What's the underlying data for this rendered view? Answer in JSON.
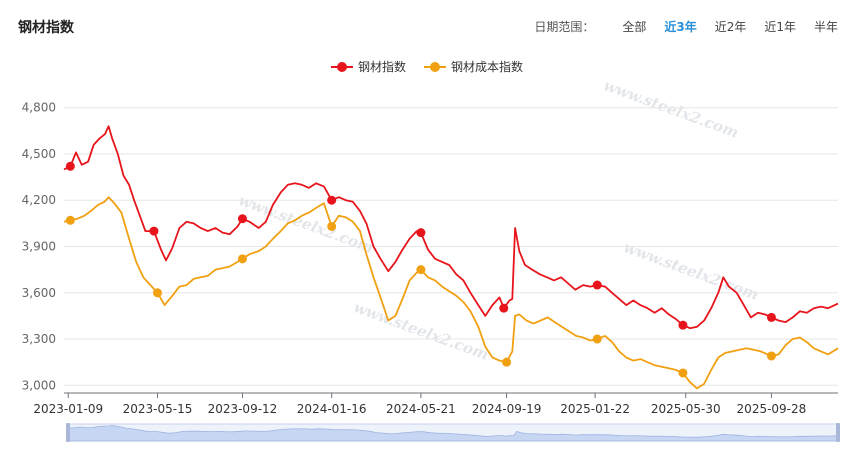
{
  "page": {
    "title": "钢材指数"
  },
  "range_selector": {
    "label": "日期范围：",
    "options": [
      {
        "label": "全部",
        "active": false
      },
      {
        "label": "近3年",
        "active": true
      },
      {
        "label": "近2年",
        "active": false
      },
      {
        "label": "近1年",
        "active": false
      },
      {
        "label": "半年",
        "active": false
      }
    ]
  },
  "watermark": "www.steelx2.com",
  "colors": {
    "steel_index": "#e8141b",
    "cost_index": "#f0a010",
    "grid": "#e6e6e6",
    "axis_text": "#666666"
  },
  "chart_data": {
    "type": "line",
    "title": "",
    "xlabel": "",
    "ylabel": "",
    "ylim": [
      2950,
      4850
    ],
    "yticks": [
      3000,
      3300,
      3600,
      3900,
      4200,
      4500,
      4800
    ],
    "ytick_labels": [
      "3,000",
      "3,300",
      "3,600",
      "3,900",
      "4,200",
      "4,500",
      "4,800"
    ],
    "x_range": [
      "2023-01-03",
      "2025-12-31"
    ],
    "xticks": [
      "2023-01-09",
      "2023-05-15",
      "2023-09-12",
      "2024-01-16",
      "2024-05-21",
      "2024-09-19",
      "2025-01-22",
      "2025-05-30",
      "2025-09-28"
    ],
    "grid": true,
    "legend_position": "top-center",
    "series": [
      {
        "name": "钢材指数",
        "color": "#e8141b",
        "points": [
          [
            "2023-01-03",
            4400
          ],
          [
            "2023-01-12",
            4420
          ],
          [
            "2023-01-20",
            4510
          ],
          [
            "2023-01-28",
            4430
          ],
          [
            "2023-02-06",
            4450
          ],
          [
            "2023-02-14",
            4560
          ],
          [
            "2023-02-22",
            4600
          ],
          [
            "2023-03-02",
            4630
          ],
          [
            "2023-03-07",
            4680
          ],
          [
            "2023-03-12",
            4600
          ],
          [
            "2023-03-20",
            4500
          ],
          [
            "2023-03-28",
            4360
          ],
          [
            "2023-04-05",
            4300
          ],
          [
            "2023-04-12",
            4200
          ],
          [
            "2023-04-20",
            4100
          ],
          [
            "2023-04-28",
            4000
          ],
          [
            "2023-05-10",
            4000
          ],
          [
            "2023-05-20",
            3880
          ],
          [
            "2023-05-27",
            3810
          ],
          [
            "2023-06-05",
            3890
          ],
          [
            "2023-06-15",
            4020
          ],
          [
            "2023-06-25",
            4060
          ],
          [
            "2023-07-05",
            4050
          ],
          [
            "2023-07-15",
            4020
          ],
          [
            "2023-07-25",
            4000
          ],
          [
            "2023-08-05",
            4020
          ],
          [
            "2023-08-15",
            3990
          ],
          [
            "2023-08-25",
            3980
          ],
          [
            "2023-09-05",
            4030
          ],
          [
            "2023-09-12",
            4080
          ],
          [
            "2023-09-22",
            4060
          ],
          [
            "2023-10-05",
            4020
          ],
          [
            "2023-10-15",
            4060
          ],
          [
            "2023-10-25",
            4170
          ],
          [
            "2023-11-05",
            4250
          ],
          [
            "2023-11-15",
            4300
          ],
          [
            "2023-11-25",
            4310
          ],
          [
            "2023-12-05",
            4300
          ],
          [
            "2023-12-15",
            4280
          ],
          [
            "2023-12-25",
            4310
          ],
          [
            "2024-01-05",
            4290
          ],
          [
            "2024-01-16",
            4200
          ],
          [
            "2024-01-26",
            4220
          ],
          [
            "2024-02-05",
            4200
          ],
          [
            "2024-02-15",
            4190
          ],
          [
            "2024-02-25",
            4130
          ],
          [
            "2024-03-05",
            4050
          ],
          [
            "2024-03-15",
            3900
          ],
          [
            "2024-03-25",
            3820
          ],
          [
            "2024-04-05",
            3740
          ],
          [
            "2024-04-15",
            3800
          ],
          [
            "2024-04-25",
            3880
          ],
          [
            "2024-05-05",
            3950
          ],
          [
            "2024-05-15",
            4000
          ],
          [
            "2024-05-21",
            3990
          ],
          [
            "2024-05-31",
            3880
          ],
          [
            "2024-06-10",
            3820
          ],
          [
            "2024-06-20",
            3800
          ],
          [
            "2024-06-30",
            3780
          ],
          [
            "2024-07-10",
            3720
          ],
          [
            "2024-07-20",
            3680
          ],
          [
            "2024-07-30",
            3600
          ],
          [
            "2024-08-10",
            3520
          ],
          [
            "2024-08-20",
            3450
          ],
          [
            "2024-08-30",
            3520
          ],
          [
            "2024-09-09",
            3570
          ],
          [
            "2024-09-15",
            3500
          ],
          [
            "2024-09-23",
            3550
          ],
          [
            "2024-09-27",
            3560
          ],
          [
            "2024-10-01",
            4020
          ],
          [
            "2024-10-07",
            3870
          ],
          [
            "2024-10-15",
            3780
          ],
          [
            "2024-10-25",
            3750
          ],
          [
            "2024-11-05",
            3720
          ],
          [
            "2024-11-15",
            3700
          ],
          [
            "2024-11-25",
            3680
          ],
          [
            "2024-12-05",
            3700
          ],
          [
            "2024-12-15",
            3660
          ],
          [
            "2024-12-25",
            3620
          ],
          [
            "2025-01-05",
            3650
          ],
          [
            "2025-01-15",
            3640
          ],
          [
            "2025-01-25",
            3650
          ],
          [
            "2025-02-05",
            3640
          ],
          [
            "2025-02-15",
            3600
          ],
          [
            "2025-02-25",
            3560
          ],
          [
            "2025-03-07",
            3520
          ],
          [
            "2025-03-17",
            3550
          ],
          [
            "2025-03-27",
            3520
          ],
          [
            "2025-04-06",
            3500
          ],
          [
            "2025-04-16",
            3470
          ],
          [
            "2025-04-26",
            3500
          ],
          [
            "2025-05-06",
            3460
          ],
          [
            "2025-05-16",
            3430
          ],
          [
            "2025-05-26",
            3390
          ],
          [
            "2025-06-05",
            3370
          ],
          [
            "2025-06-15",
            3380
          ],
          [
            "2025-06-25",
            3420
          ],
          [
            "2025-07-05",
            3500
          ],
          [
            "2025-07-15",
            3600
          ],
          [
            "2025-07-22",
            3700
          ],
          [
            "2025-07-30",
            3640
          ],
          [
            "2025-08-10",
            3600
          ],
          [
            "2025-08-20",
            3520
          ],
          [
            "2025-08-30",
            3440
          ],
          [
            "2025-09-09",
            3470
          ],
          [
            "2025-09-19",
            3460
          ],
          [
            "2025-09-28",
            3440
          ],
          [
            "2025-10-08",
            3420
          ],
          [
            "2025-10-18",
            3410
          ],
          [
            "2025-10-28",
            3440
          ],
          [
            "2025-11-07",
            3480
          ],
          [
            "2025-11-17",
            3470
          ],
          [
            "2025-11-27",
            3500
          ],
          [
            "2025-12-07",
            3510
          ],
          [
            "2025-12-17",
            3500
          ],
          [
            "2025-12-31",
            3530
          ]
        ]
      },
      {
        "name": "钢材成本指数",
        "color": "#f0a010",
        "points": [
          [
            "2023-01-03",
            4060
          ],
          [
            "2023-01-12",
            4070
          ],
          [
            "2023-01-22",
            4080
          ],
          [
            "2023-02-01",
            4100
          ],
          [
            "2023-02-10",
            4130
          ],
          [
            "2023-02-20",
            4170
          ],
          [
            "2023-03-01",
            4190
          ],
          [
            "2023-03-07",
            4220
          ],
          [
            "2023-03-15",
            4180
          ],
          [
            "2023-03-25",
            4120
          ],
          [
            "2023-04-05",
            3950
          ],
          [
            "2023-04-15",
            3800
          ],
          [
            "2023-04-25",
            3700
          ],
          [
            "2023-05-05",
            3650
          ],
          [
            "2023-05-15",
            3600
          ],
          [
            "2023-05-25",
            3520
          ],
          [
            "2023-06-05",
            3580
          ],
          [
            "2023-06-15",
            3640
          ],
          [
            "2023-06-25",
            3650
          ],
          [
            "2023-07-05",
            3690
          ],
          [
            "2023-07-15",
            3700
          ],
          [
            "2023-07-25",
            3710
          ],
          [
            "2023-08-05",
            3750
          ],
          [
            "2023-08-15",
            3760
          ],
          [
            "2023-08-25",
            3770
          ],
          [
            "2023-09-05",
            3800
          ],
          [
            "2023-09-12",
            3820
          ],
          [
            "2023-09-22",
            3850
          ],
          [
            "2023-10-05",
            3870
          ],
          [
            "2023-10-15",
            3900
          ],
          [
            "2023-10-25",
            3950
          ],
          [
            "2023-11-05",
            4000
          ],
          [
            "2023-11-15",
            4050
          ],
          [
            "2023-11-25",
            4070
          ],
          [
            "2023-12-05",
            4100
          ],
          [
            "2023-12-15",
            4120
          ],
          [
            "2023-12-25",
            4150
          ],
          [
            "2024-01-05",
            4180
          ],
          [
            "2024-01-16",
            4030
          ],
          [
            "2024-01-26",
            4100
          ],
          [
            "2024-02-05",
            4090
          ],
          [
            "2024-02-15",
            4060
          ],
          [
            "2024-02-25",
            4000
          ],
          [
            "2024-03-05",
            3850
          ],
          [
            "2024-03-15",
            3700
          ],
          [
            "2024-03-25",
            3570
          ],
          [
            "2024-04-05",
            3420
          ],
          [
            "2024-04-15",
            3450
          ],
          [
            "2024-04-25",
            3560
          ],
          [
            "2024-05-05",
            3680
          ],
          [
            "2024-05-15",
            3730
          ],
          [
            "2024-05-21",
            3750
          ],
          [
            "2024-05-31",
            3700
          ],
          [
            "2024-06-10",
            3680
          ],
          [
            "2024-06-20",
            3640
          ],
          [
            "2024-06-30",
            3610
          ],
          [
            "2024-07-10",
            3580
          ],
          [
            "2024-07-20",
            3540
          ],
          [
            "2024-07-30",
            3480
          ],
          [
            "2024-08-10",
            3380
          ],
          [
            "2024-08-20",
            3250
          ],
          [
            "2024-08-30",
            3180
          ],
          [
            "2024-09-09",
            3160
          ],
          [
            "2024-09-19",
            3150
          ],
          [
            "2024-09-27",
            3220
          ],
          [
            "2024-10-01",
            3450
          ],
          [
            "2024-10-07",
            3460
          ],
          [
            "2024-10-17",
            3420
          ],
          [
            "2024-10-27",
            3400
          ],
          [
            "2024-11-06",
            3420
          ],
          [
            "2024-11-16",
            3440
          ],
          [
            "2024-11-26",
            3410
          ],
          [
            "2024-12-06",
            3380
          ],
          [
            "2024-12-16",
            3350
          ],
          [
            "2024-12-26",
            3320
          ],
          [
            "2025-01-05",
            3310
          ],
          [
            "2025-01-15",
            3290
          ],
          [
            "2025-01-25",
            3300
          ],
          [
            "2025-02-05",
            3320
          ],
          [
            "2025-02-15",
            3280
          ],
          [
            "2025-02-25",
            3220
          ],
          [
            "2025-03-07",
            3180
          ],
          [
            "2025-03-17",
            3160
          ],
          [
            "2025-03-27",
            3170
          ],
          [
            "2025-04-06",
            3150
          ],
          [
            "2025-04-16",
            3130
          ],
          [
            "2025-04-26",
            3120
          ],
          [
            "2025-05-06",
            3110
          ],
          [
            "2025-05-16",
            3100
          ],
          [
            "2025-05-26",
            3080
          ],
          [
            "2025-06-05",
            3020
          ],
          [
            "2025-06-15",
            2980
          ],
          [
            "2025-06-25",
            3010
          ],
          [
            "2025-07-05",
            3100
          ],
          [
            "2025-07-15",
            3180
          ],
          [
            "2025-07-25",
            3210
          ],
          [
            "2025-08-04",
            3220
          ],
          [
            "2025-08-14",
            3230
          ],
          [
            "2025-08-24",
            3240
          ],
          [
            "2025-09-03",
            3230
          ],
          [
            "2025-09-13",
            3220
          ],
          [
            "2025-09-28",
            3190
          ],
          [
            "2025-10-08",
            3200
          ],
          [
            "2025-10-18",
            3260
          ],
          [
            "2025-10-28",
            3300
          ],
          [
            "2025-11-07",
            3310
          ],
          [
            "2025-11-17",
            3280
          ],
          [
            "2025-11-27",
            3240
          ],
          [
            "2025-12-07",
            3220
          ],
          [
            "2025-12-17",
            3200
          ],
          [
            "2025-12-31",
            3240
          ]
        ]
      }
    ]
  }
}
